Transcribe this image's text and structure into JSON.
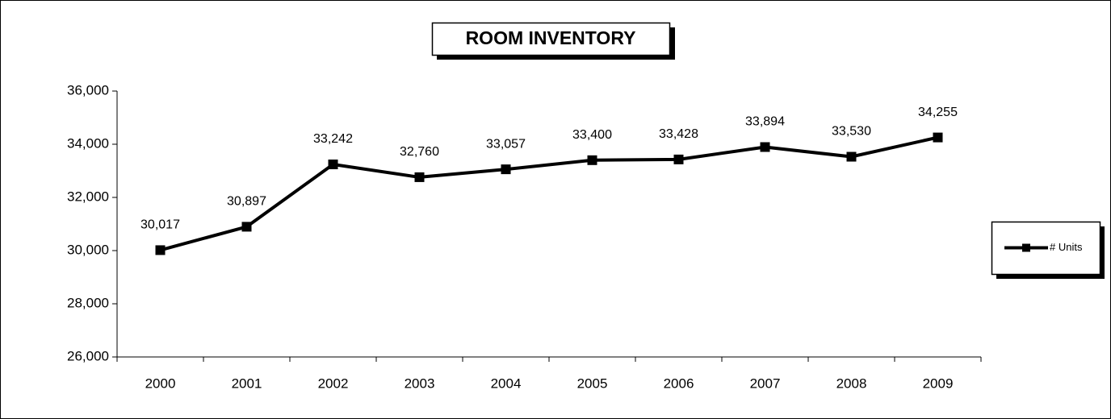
{
  "chart_data": {
    "type": "line",
    "title": "ROOM INVENTORY",
    "categories": [
      "2000",
      "2001",
      "2002",
      "2003",
      "2004",
      "2005",
      "2006",
      "2007",
      "2008",
      "2009"
    ],
    "series": [
      {
        "name": "# Units",
        "color": "#000000",
        "values": [
          30017,
          30897,
          33242,
          32760,
          33057,
          33400,
          33428,
          33894,
          33530,
          34255
        ],
        "value_labels": [
          "30,017",
          "30,897",
          "33,242",
          "32,760",
          "33,057",
          "33,400",
          "33,428",
          "33,894",
          "33,530",
          "34,255"
        ]
      }
    ],
    "ylim": [
      26000,
      36000
    ],
    "yticks": [
      {
        "value": 26000,
        "label": "26,000"
      },
      {
        "value": 28000,
        "label": "28,000"
      },
      {
        "value": 30000,
        "label": "30,000"
      },
      {
        "value": 32000,
        "label": "32,000"
      },
      {
        "value": 34000,
        "label": "34,000"
      },
      {
        "value": 36000,
        "label": "36,000"
      }
    ],
    "grid": false,
    "legend": "right"
  }
}
